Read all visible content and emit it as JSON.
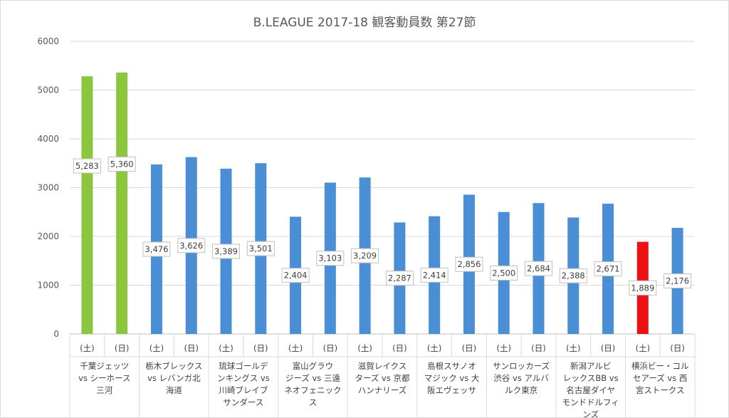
{
  "chart_data": {
    "type": "bar",
    "title": "B.LEAGUE 2017-18 観客動員数 第27節",
    "ylim": [
      0,
      6000
    ],
    "yticks": [
      0,
      1000,
      2000,
      3000,
      4000,
      5000,
      6000
    ],
    "grid": true,
    "legend": "none",
    "colors": {
      "green": "#8cc63f",
      "blue": "#4a8fd6",
      "red": "#ee1111"
    },
    "games": [
      {
        "name_lines": [
          "千葉ジェッツ",
          "vs シーホース",
          "三河"
        ],
        "bars": [
          {
            "day": "(土)",
            "value": 5283,
            "color": "green"
          },
          {
            "day": "(日)",
            "value": 5360,
            "color": "green"
          }
        ]
      },
      {
        "name_lines": [
          "栃木ブレックス",
          "vs レバンガ北",
          "海道"
        ],
        "bars": [
          {
            "day": "(土)",
            "value": 3476,
            "color": "blue"
          },
          {
            "day": "(日)",
            "value": 3626,
            "color": "blue"
          }
        ]
      },
      {
        "name_lines": [
          "琉球ゴールデ",
          "ンキングス vs",
          "川崎ブレイブ",
          "サンダース"
        ],
        "bars": [
          {
            "day": "(土)",
            "value": 3389,
            "color": "blue"
          },
          {
            "day": "(日)",
            "value": 3501,
            "color": "blue"
          }
        ]
      },
      {
        "name_lines": [
          "富山グラウ",
          "ジーズ vs 三遠",
          "ネオフェニック",
          "ス"
        ],
        "bars": [
          {
            "day": "(土)",
            "value": 2404,
            "color": "blue"
          },
          {
            "day": "(日)",
            "value": 3103,
            "color": "blue"
          }
        ]
      },
      {
        "name_lines": [
          "滋賀レイクス",
          "ターズ vs 京都",
          "ハンナリーズ"
        ],
        "bars": [
          {
            "day": "(土)",
            "value": 3209,
            "color": "blue"
          },
          {
            "day": "(日)",
            "value": 2287,
            "color": "blue"
          }
        ]
      },
      {
        "name_lines": [
          "島根スサノオ",
          "マジック vs 大",
          "阪エヴェッサ"
        ],
        "bars": [
          {
            "day": "(土)",
            "value": 2414,
            "color": "blue"
          },
          {
            "day": "(日)",
            "value": 2856,
            "color": "blue"
          }
        ]
      },
      {
        "name_lines": [
          "サンロッカーズ",
          "渋谷 vs アルバ",
          "ルク東京"
        ],
        "bars": [
          {
            "day": "(土)",
            "value": 2500,
            "color": "blue"
          },
          {
            "day": "(日)",
            "value": 2684,
            "color": "blue"
          }
        ]
      },
      {
        "name_lines": [
          "新潟アルビ",
          "レックスBB vs",
          "名古屋ダイヤ",
          "モンドドルフィ",
          "ンズ"
        ],
        "bars": [
          {
            "day": "(土)",
            "value": 2388,
            "color": "blue"
          },
          {
            "day": "(日)",
            "value": 2671,
            "color": "blue"
          }
        ]
      },
      {
        "name_lines": [
          "横浜ビー・コル",
          "セアーズ vs 西",
          "宮ストークス"
        ],
        "bars": [
          {
            "day": "(土)",
            "value": 1889,
            "color": "red"
          },
          {
            "day": "(日)",
            "value": 2176,
            "color": "blue"
          }
        ]
      }
    ]
  }
}
